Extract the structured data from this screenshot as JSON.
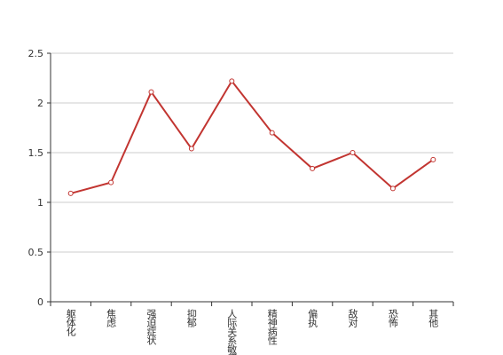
{
  "chart_data": {
    "type": "line",
    "categories": [
      "躯体化",
      "焦虑",
      "强迫症状",
      "抑郁",
      "人际关系敏感",
      "精神病性",
      "偏执",
      "敌对",
      "恐怖",
      "其他"
    ],
    "values": [
      1.09,
      1.2,
      2.11,
      1.54,
      2.22,
      1.7,
      1.34,
      1.5,
      1.14,
      1.43
    ],
    "color": "#c23531",
    "ylim": [
      0,
      2.5
    ],
    "yticks": [
      0,
      0.5,
      1,
      1.5,
      2,
      2.5
    ],
    "grid": true
  }
}
